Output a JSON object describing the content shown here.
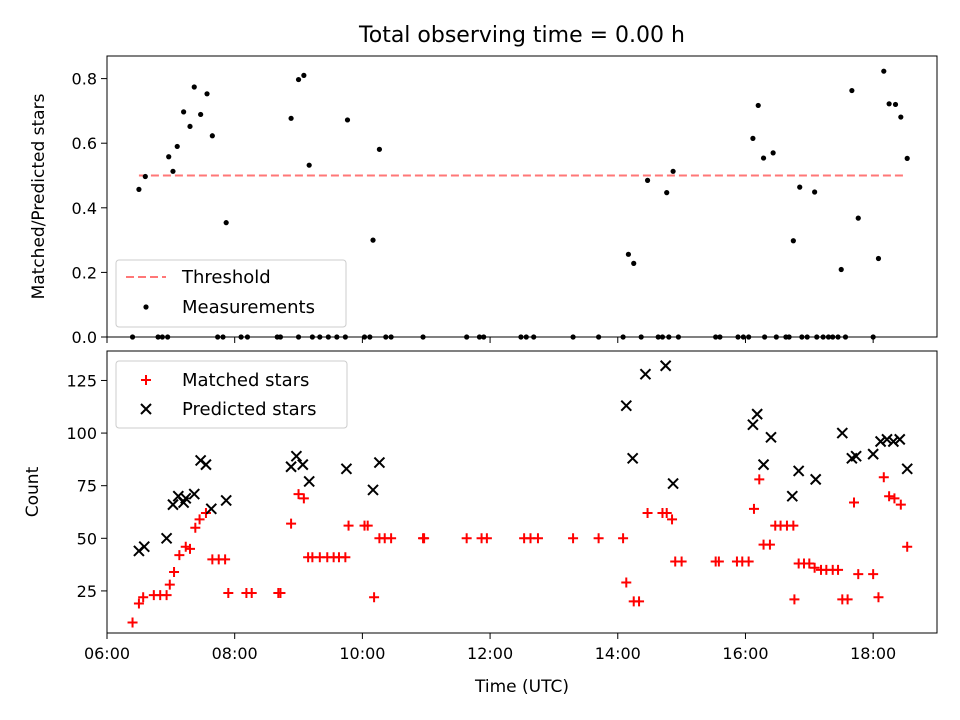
{
  "chart_data": [
    {
      "type": "scatter",
      "title": "Total observing time = 0.00 h",
      "ylabel": "Matched/Predicted stars",
      "xlabel": "",
      "xlim": [
        "06:00",
        "19:00"
      ],
      "ylim": [
        0,
        0.87
      ],
      "yticks": [
        "0.0",
        "0.2",
        "0.4",
        "0.6",
        "0.8"
      ],
      "legend_position": "lower-left",
      "threshold": {
        "name": "Threshold",
        "value": 0.5,
        "x_range": [
          "06:30",
          "18:30"
        ],
        "color": "#ff7777"
      },
      "series": [
        {
          "name": "Measurements",
          "color": "#000000",
          "points": [
            [
              "06:24",
              0.0
            ],
            [
              "06:30",
              0.457
            ],
            [
              "06:36",
              0.497
            ],
            [
              "06:48",
              0.0
            ],
            [
              "06:52",
              0.0
            ],
            [
              "06:57",
              0.0
            ],
            [
              "06:58",
              0.558
            ],
            [
              "07:02",
              0.513
            ],
            [
              "07:06",
              0.59
            ],
            [
              "07:12",
              0.697
            ],
            [
              "07:18",
              0.652
            ],
            [
              "07:22",
              0.774
            ],
            [
              "07:28",
              0.689
            ],
            [
              "07:34",
              0.753
            ],
            [
              "07:39",
              0.623
            ],
            [
              "07:44",
              0.0
            ],
            [
              "07:49",
              0.0
            ],
            [
              "07:52",
              0.354
            ],
            [
              "08:06",
              0.0
            ],
            [
              "08:12",
              0.0
            ],
            [
              "08:40",
              0.0
            ],
            [
              "08:43",
              0.0
            ],
            [
              "08:53",
              0.677
            ],
            [
              "09:00",
              0.797
            ],
            [
              "09:05",
              0.81
            ],
            [
              "09:10",
              0.532
            ],
            [
              "09:00",
              0.0
            ],
            [
              "09:13",
              0.0
            ],
            [
              "09:20",
              0.0
            ],
            [
              "09:28",
              0.0
            ],
            [
              "09:36",
              0.0
            ],
            [
              "09:44",
              0.0
            ],
            [
              "09:46",
              0.672
            ],
            [
              "10:02",
              0.0
            ],
            [
              "10:07",
              0.0
            ],
            [
              "10:10",
              0.3
            ],
            [
              "10:16",
              0.581
            ],
            [
              "10:22",
              0.0
            ],
            [
              "10:27",
              0.0
            ],
            [
              "10:57",
              0.0
            ],
            [
              "11:38",
              0.0
            ],
            [
              "11:50",
              0.0
            ],
            [
              "11:54",
              0.0
            ],
            [
              "12:29",
              0.0
            ],
            [
              "12:34",
              0.0
            ],
            [
              "12:41",
              0.0
            ],
            [
              "13:18",
              0.0
            ],
            [
              "13:42",
              0.0
            ],
            [
              "14:05",
              0.0
            ],
            [
              "14:10",
              0.256
            ],
            [
              "14:15",
              0.228
            ],
            [
              "14:22",
              0.0
            ],
            [
              "14:28",
              0.485
            ],
            [
              "14:38",
              0.0
            ],
            [
              "14:42",
              0.0
            ],
            [
              "14:46",
              0.447
            ],
            [
              "14:52",
              0.513
            ],
            [
              "14:48",
              0.0
            ],
            [
              "14:57",
              0.0
            ],
            [
              "15:32",
              0.0
            ],
            [
              "15:36",
              0.0
            ],
            [
              "15:53",
              0.0
            ],
            [
              "15:58",
              0.0
            ],
            [
              "16:03",
              0.0
            ],
            [
              "16:07",
              0.615
            ],
            [
              "16:12",
              0.717
            ],
            [
              "16:17",
              0.554
            ],
            [
              "16:18",
              0.0
            ],
            [
              "16:26",
              0.57
            ],
            [
              "16:29",
              0.0
            ],
            [
              "16:38",
              0.0
            ],
            [
              "16:41",
              0.0
            ],
            [
              "16:45",
              0.298
            ],
            [
              "16:51",
              0.464
            ],
            [
              "16:53",
              0.0
            ],
            [
              "16:58",
              0.0
            ],
            [
              "17:05",
              0.449
            ],
            [
              "17:07",
              0.0
            ],
            [
              "17:13",
              0.0
            ],
            [
              "17:18",
              0.0
            ],
            [
              "17:22",
              0.0
            ],
            [
              "17:27",
              0.0
            ],
            [
              "17:30",
              0.209
            ],
            [
              "17:34",
              0.0
            ],
            [
              "17:40",
              0.763
            ],
            [
              "17:46",
              0.368
            ],
            [
              "18:00",
              0.0
            ],
            [
              "18:05",
              0.243
            ],
            [
              "18:10",
              0.823
            ],
            [
              "18:15",
              0.722
            ],
            [
              "18:21",
              0.72
            ],
            [
              "18:26",
              0.681
            ],
            [
              "18:32",
              0.553
            ]
          ]
        }
      ]
    },
    {
      "type": "scatter",
      "title": "",
      "ylabel": "Count",
      "xlabel": "Time (UTC)",
      "xlim": [
        "06:00",
        "19:00"
      ],
      "ylim": [
        5,
        139
      ],
      "yticks": [
        "25",
        "50",
        "75",
        "100",
        "125"
      ],
      "xticks": [
        "06:00",
        "08:00",
        "10:00",
        "12:00",
        "14:00",
        "16:00",
        "18:00"
      ],
      "legend_position": "upper-left",
      "series": [
        {
          "name": "Matched stars",
          "marker": "plus",
          "color": "#ff0000",
          "points": [
            [
              "06:24",
              10
            ],
            [
              "06:30",
              19
            ],
            [
              "06:34",
              22
            ],
            [
              "06:44",
              23
            ],
            [
              "06:50",
              23
            ],
            [
              "06:56",
              23
            ],
            [
              "06:59",
              28
            ],
            [
              "07:03",
              34
            ],
            [
              "07:08",
              42
            ],
            [
              "07:14",
              46
            ],
            [
              "07:18",
              45
            ],
            [
              "07:23",
              55
            ],
            [
              "07:27",
              59
            ],
            [
              "07:33",
              62
            ],
            [
              "07:39",
              40
            ],
            [
              "07:45",
              40
            ],
            [
              "07:51",
              40
            ],
            [
              "07:54",
              24
            ],
            [
              "08:11",
              24
            ],
            [
              "08:16",
              24
            ],
            [
              "08:41",
              24
            ],
            [
              "08:43",
              24
            ],
            [
              "08:53",
              57
            ],
            [
              "09:00",
              71
            ],
            [
              "09:05",
              69
            ],
            [
              "09:09",
              41
            ],
            [
              "09:13",
              41
            ],
            [
              "09:20",
              41
            ],
            [
              "09:27",
              41
            ],
            [
              "09:33",
              41
            ],
            [
              "09:38",
              41
            ],
            [
              "09:44",
              41
            ],
            [
              "09:47",
              56
            ],
            [
              "10:02",
              56
            ],
            [
              "10:05",
              56
            ],
            [
              "10:11",
              22
            ],
            [
              "10:16",
              50
            ],
            [
              "10:21",
              50
            ],
            [
              "10:27",
              50
            ],
            [
              "10:57",
              50
            ],
            [
              "10:58",
              50
            ],
            [
              "11:38",
              50
            ],
            [
              "11:52",
              50
            ],
            [
              "11:57",
              50
            ],
            [
              "12:32",
              50
            ],
            [
              "12:38",
              50
            ],
            [
              "12:45",
              50
            ],
            [
              "13:18",
              50
            ],
            [
              "13:42",
              50
            ],
            [
              "14:05",
              50
            ],
            [
              "14:08",
              29
            ],
            [
              "14:15",
              20
            ],
            [
              "14:20",
              20
            ],
            [
              "14:28",
              62
            ],
            [
              "14:42",
              62
            ],
            [
              "14:46",
              62
            ],
            [
              "14:51",
              59
            ],
            [
              "14:54",
              39
            ],
            [
              "15:00",
              39
            ],
            [
              "15:32",
              39
            ],
            [
              "15:35",
              39
            ],
            [
              "15:52",
              39
            ],
            [
              "15:57",
              39
            ],
            [
              "16:03",
              39
            ],
            [
              "16:08",
              64
            ],
            [
              "16:13",
              78
            ],
            [
              "16:17",
              47
            ],
            [
              "16:23",
              47
            ],
            [
              "16:28",
              56
            ],
            [
              "16:33",
              56
            ],
            [
              "16:39",
              56
            ],
            [
              "16:45",
              56
            ],
            [
              "16:46",
              21
            ],
            [
              "16:50",
              38
            ],
            [
              "16:55",
              38
            ],
            [
              "17:00",
              38
            ],
            [
              "17:05",
              36
            ],
            [
              "17:11",
              35
            ],
            [
              "17:16",
              35
            ],
            [
              "17:22",
              35
            ],
            [
              "17:27",
              35
            ],
            [
              "17:31",
              21
            ],
            [
              "17:36",
              21
            ],
            [
              "17:42",
              67
            ],
            [
              "17:46",
              33
            ],
            [
              "18:00",
              33
            ],
            [
              "18:05",
              22
            ],
            [
              "18:10",
              79
            ],
            [
              "18:15",
              70
            ],
            [
              "18:20",
              69
            ],
            [
              "18:26",
              66
            ],
            [
              "18:32",
              46
            ]
          ]
        },
        {
          "name": "Predicted stars",
          "marker": "cross",
          "color": "#000000",
          "points": [
            [
              "06:30",
              44
            ],
            [
              "06:35",
              46
            ],
            [
              "06:56",
              50
            ],
            [
              "07:02",
              66
            ],
            [
              "07:07",
              70
            ],
            [
              "07:12",
              67
            ],
            [
              "07:14",
              69
            ],
            [
              "07:22",
              71
            ],
            [
              "07:28",
              87
            ],
            [
              "07:33",
              85
            ],
            [
              "07:38",
              64
            ],
            [
              "07:52",
              68
            ],
            [
              "08:53",
              84
            ],
            [
              "08:58",
              89
            ],
            [
              "09:04",
              85
            ],
            [
              "09:10",
              77
            ],
            [
              "09:45",
              83
            ],
            [
              "10:10",
              73
            ],
            [
              "10:16",
              86
            ],
            [
              "14:08",
              113
            ],
            [
              "14:14",
              88
            ],
            [
              "14:26",
              128
            ],
            [
              "14:45",
              132
            ],
            [
              "14:52",
              76
            ],
            [
              "16:07",
              104
            ],
            [
              "16:11",
              109
            ],
            [
              "16:17",
              85
            ],
            [
              "16:24",
              98
            ],
            [
              "16:44",
              70
            ],
            [
              "16:50",
              82
            ],
            [
              "17:06",
              78
            ],
            [
              "17:31",
              100
            ],
            [
              "17:40",
              88
            ],
            [
              "17:44",
              89
            ],
            [
              "18:00",
              90
            ],
            [
              "18:07",
              96
            ],
            [
              "18:13",
              97
            ],
            [
              "18:19",
              96
            ],
            [
              "18:25",
              97
            ],
            [
              "18:32",
              83
            ]
          ]
        }
      ]
    }
  ]
}
